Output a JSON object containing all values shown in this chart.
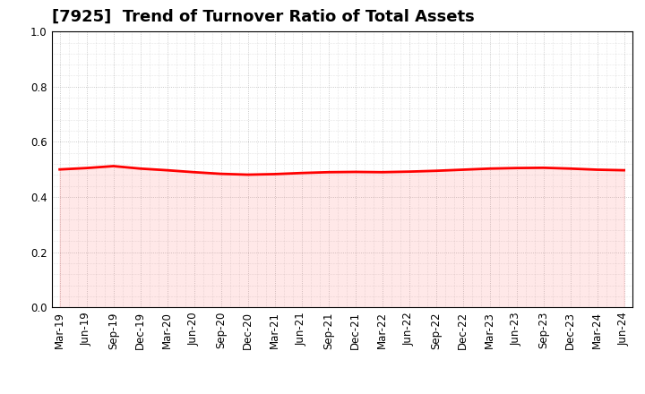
{
  "title": "[7925]  Trend of Turnover Ratio of Total Assets",
  "x_labels": [
    "Mar-19",
    "Jun-19",
    "Sep-19",
    "Dec-19",
    "Mar-20",
    "Jun-20",
    "Sep-20",
    "Dec-20",
    "Mar-21",
    "Jun-21",
    "Sep-21",
    "Dec-21",
    "Mar-22",
    "Jun-22",
    "Sep-22",
    "Dec-22",
    "Mar-23",
    "Jun-23",
    "Sep-23",
    "Dec-23",
    "Mar-24",
    "Jun-24"
  ],
  "y_values": [
    0.5,
    0.505,
    0.512,
    0.503,
    0.497,
    0.49,
    0.484,
    0.481,
    0.483,
    0.487,
    0.49,
    0.491,
    0.49,
    0.492,
    0.495,
    0.499,
    0.503,
    0.505,
    0.506,
    0.503,
    0.499,
    0.497
  ],
  "ylim": [
    0.0,
    1.0
  ],
  "yticks": [
    0.0,
    0.2,
    0.4,
    0.6,
    0.8,
    1.0
  ],
  "line_color": "#FF0000",
  "line_width": 2.0,
  "bg_color": "#FFFFFF",
  "grid_color": "#AAAAAA",
  "title_fontsize": 13,
  "tick_fontsize": 8.5,
  "title_color": "#000000",
  "fill_color": "#FF6666",
  "fill_alpha": 0.15
}
